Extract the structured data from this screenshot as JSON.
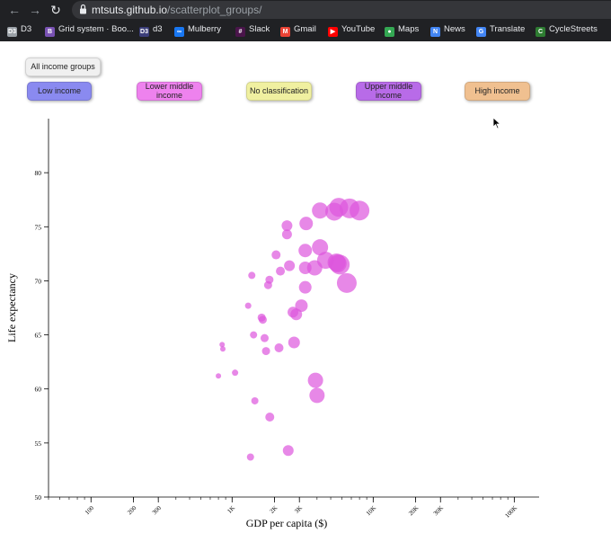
{
  "browser": {
    "url_host": "mtsuts.github.io",
    "url_path": "/scatterplot_groups/",
    "bookmarks": [
      {
        "label": "D3",
        "icon": "d3-icon",
        "color": "#9aa0a6"
      },
      {
        "label": "Grid system · Boo...",
        "icon": "bootstrap-icon",
        "color": "#7952b3"
      },
      {
        "label": "d3",
        "icon": "d3-icon",
        "color": "#3c3f7a"
      },
      {
        "label": "Mulberry",
        "icon": "meta-icon",
        "color": "#1877f2"
      },
      {
        "label": "Slack",
        "icon": "slack-icon",
        "color": "#4a154b"
      },
      {
        "label": "Gmail",
        "icon": "gmail-icon",
        "color": "#ea4335"
      },
      {
        "label": "YouTube",
        "icon": "youtube-icon",
        "color": "#ff0000"
      },
      {
        "label": "Maps",
        "icon": "maps-icon",
        "color": "#34a853"
      },
      {
        "label": "News",
        "icon": "news-icon",
        "color": "#4285f4"
      },
      {
        "label": "Translate",
        "icon": "translate-icon",
        "color": "#4285f4"
      },
      {
        "label": "CycleStreets",
        "icon": "cyclestreets-icon",
        "color": "#2e7d32"
      }
    ]
  },
  "filters": {
    "all": {
      "label": "All income groups",
      "color": "#f0f0f0"
    },
    "groups": [
      {
        "label": "Low income",
        "color": "#8a8af0"
      },
      {
        "label": "Lower middle income",
        "color": "#ee82ee"
      },
      {
        "label": "No classification",
        "color": "#f0f0a0"
      },
      {
        "label": "Upper middle income",
        "color": "#b86be8"
      },
      {
        "label": "High income",
        "color": "#f0c090"
      }
    ]
  },
  "chart_data": {
    "type": "scatter",
    "xlabel": "GDP per capita ($)",
    "ylabel": "Life expectancy",
    "x_scale": "log",
    "xlim": [
      50,
      150000
    ],
    "ylim": [
      50,
      85
    ],
    "x_ticks": [
      "100",
      "200",
      "300",
      "1K",
      "2K",
      "3K",
      "10K",
      "20K",
      "30K",
      "100K"
    ],
    "x_tick_values": [
      100,
      200,
      300,
      1000,
      2000,
      3000,
      10000,
      20000,
      30000,
      100000
    ],
    "y_ticks": [
      "50",
      "55",
      "60",
      "65",
      "70",
      "75",
      "80"
    ],
    "y_tick_values": [
      50,
      55,
      60,
      65,
      70,
      75,
      80
    ],
    "point_color": "#dd55dd",
    "series": [
      {
        "values": [
          {
            "x": 800,
            "y": 61.2,
            "size": 3
          },
          {
            "x": 850,
            "y": 64.1,
            "size": 3
          },
          {
            "x": 860,
            "y": 63.7,
            "size": 3
          },
          {
            "x": 1050,
            "y": 61.5,
            "size": 3.5
          },
          {
            "x": 1300,
            "y": 67.7,
            "size": 3.5
          },
          {
            "x": 1350,
            "y": 53.7,
            "size": 4
          },
          {
            "x": 1380,
            "y": 70.5,
            "size": 4
          },
          {
            "x": 1420,
            "y": 65.0,
            "size": 4
          },
          {
            "x": 1450,
            "y": 58.9,
            "size": 4
          },
          {
            "x": 1620,
            "y": 66.6,
            "size": 4.5
          },
          {
            "x": 1650,
            "y": 66.4,
            "size": 4.5
          },
          {
            "x": 1700,
            "y": 64.7,
            "size": 4.5
          },
          {
            "x": 1740,
            "y": 63.5,
            "size": 4.5
          },
          {
            "x": 1800,
            "y": 69.6,
            "size": 4.5
          },
          {
            "x": 1840,
            "y": 70.1,
            "size": 4.5
          },
          {
            "x": 1850,
            "y": 57.4,
            "size": 5
          },
          {
            "x": 2050,
            "y": 72.4,
            "size": 5
          },
          {
            "x": 2150,
            "y": 63.8,
            "size": 5
          },
          {
            "x": 2200,
            "y": 70.9,
            "size": 5
          },
          {
            "x": 2450,
            "y": 75.1,
            "size": 6
          },
          {
            "x": 2450,
            "y": 74.3,
            "size": 5.5
          },
          {
            "x": 2500,
            "y": 54.3,
            "size": 6
          },
          {
            "x": 2550,
            "y": 71.4,
            "size": 6
          },
          {
            "x": 2700,
            "y": 67.1,
            "size": 6
          },
          {
            "x": 2750,
            "y": 64.3,
            "size": 6.5
          },
          {
            "x": 2850,
            "y": 66.9,
            "size": 6.5
          },
          {
            "x": 3100,
            "y": 67.7,
            "size": 7
          },
          {
            "x": 3300,
            "y": 71.2,
            "size": 7
          },
          {
            "x": 3300,
            "y": 69.4,
            "size": 7
          },
          {
            "x": 3300,
            "y": 72.8,
            "size": 7.5
          },
          {
            "x": 3350,
            "y": 75.3,
            "size": 7.5
          },
          {
            "x": 3850,
            "y": 71.2,
            "size": 8.5
          },
          {
            "x": 3900,
            "y": 60.8,
            "size": 8.5
          },
          {
            "x": 4000,
            "y": 59.4,
            "size": 8.5
          },
          {
            "x": 4200,
            "y": 76.5,
            "size": 9
          },
          {
            "x": 4200,
            "y": 73.1,
            "size": 9
          },
          {
            "x": 4600,
            "y": 71.9,
            "size": 9.5
          },
          {
            "x": 5300,
            "y": 76.4,
            "size": 10
          },
          {
            "x": 5500,
            "y": 71.7,
            "size": 10
          },
          {
            "x": 5600,
            "y": 71.6,
            "size": 10
          },
          {
            "x": 5700,
            "y": 76.8,
            "size": 10.5
          },
          {
            "x": 5800,
            "y": 71.5,
            "size": 11
          },
          {
            "x": 6500,
            "y": 69.8,
            "size": 11
          },
          {
            "x": 6800,
            "y": 76.7,
            "size": 11
          },
          {
            "x": 8000,
            "y": 76.5,
            "size": 11
          }
        ]
      }
    ]
  }
}
